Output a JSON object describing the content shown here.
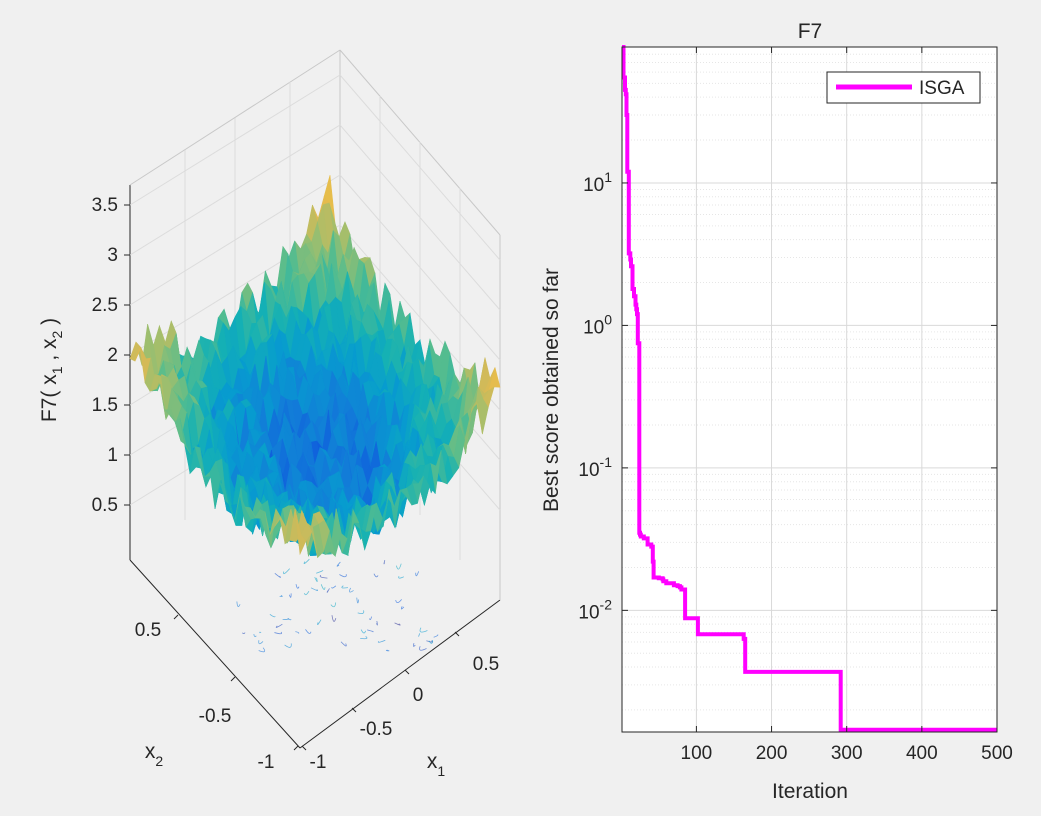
{
  "chart_data": [
    {
      "type": "surface",
      "zlabel": {
        "main": "F7( x",
        "sub1": "1",
        "mid": " , x",
        "sub2": "2",
        "end": " )"
      },
      "x1label": {
        "main": "x",
        "sub": "1"
      },
      "x2label": {
        "main": "x",
        "sub": "2"
      },
      "zticks": [
        "3.5",
        "3",
        "2.5",
        "2",
        "1.5",
        "1",
        "0.5"
      ],
      "x1ticks": [
        "0.5",
        "0",
        "-0.5",
        "-1"
      ],
      "x2ticks": [
        "0.5",
        "-0.5",
        "-1"
      ],
      "zlim": [
        0,
        3.8
      ],
      "x1lim": [
        -1,
        1
      ],
      "x2lim": [
        -1,
        1
      ],
      "colormap": "parula"
    },
    {
      "type": "line",
      "title": "F7",
      "xlabel": "Iteration",
      "ylabel": "Best score obtained so far",
      "yscale": "log",
      "xlim": [
        1,
        500
      ],
      "ylim": [
        0.0014,
        90
      ],
      "xticks": [
        "100",
        "200",
        "300",
        "400",
        "500"
      ],
      "yticks": [
        {
          "base": "10",
          "exp": "1"
        },
        {
          "base": "10",
          "exp": "0"
        },
        {
          "base": "10",
          "exp": "-1"
        },
        {
          "base": "10",
          "exp": "-2"
        }
      ],
      "grid": true,
      "legend_position": "top-right",
      "series": [
        {
          "name": "ISGA",
          "color": "#ff00ff",
          "x": [
            1,
            3,
            3,
            5,
            6,
            7,
            8,
            10,
            12,
            13,
            15,
            17,
            19,
            20,
            21,
            22,
            24,
            25,
            26,
            27,
            30,
            35,
            40,
            42,
            43,
            50,
            55,
            56,
            60,
            65,
            70,
            75,
            78,
            80,
            85,
            90,
            100,
            102,
            105,
            110,
            120,
            130,
            140,
            150,
            160,
            163,
            165,
            170,
            200,
            250,
            290,
            292,
            300,
            350,
            400,
            450,
            500
          ],
          "y": [
            90,
            70,
            55,
            45,
            42,
            30,
            12,
            3.2,
            2.9,
            2.6,
            1.8,
            1.6,
            1.4,
            1.3,
            1.2,
            0.75,
            0.035,
            0.034,
            0.033,
            0.033,
            0.032,
            0.029,
            0.028,
            0.022,
            0.017,
            0.0168,
            0.0165,
            0.016,
            0.0155,
            0.0155,
            0.015,
            0.0148,
            0.0145,
            0.014,
            0.0088,
            0.0088,
            0.0088,
            0.0068,
            0.0068,
            0.0068,
            0.0068,
            0.0068,
            0.0068,
            0.0068,
            0.0068,
            0.0063,
            0.0037,
            0.0037,
            0.0037,
            0.0037,
            0.0037,
            0.00145,
            0.00145,
            0.00145,
            0.00145,
            0.00145,
            0.00145
          ]
        }
      ]
    }
  ]
}
